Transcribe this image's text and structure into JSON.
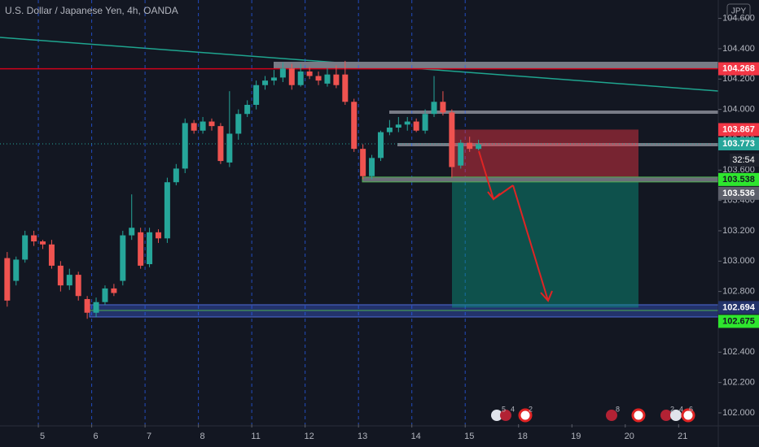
{
  "chart_data": {
    "type": "candlestick",
    "title": "U.S. Dollar / Japanese Yen, 4h, OANDA",
    "currency": "JPY",
    "countdown": "32:54",
    "x": [
      -4,
      -3,
      -2,
      -1,
      0,
      1,
      2,
      3,
      4,
      5,
      6,
      7,
      8,
      9,
      10,
      11,
      12,
      13,
      14,
      15,
      16,
      17,
      18,
      19,
      20,
      21,
      22,
      23,
      24,
      25,
      26,
      27,
      28,
      29,
      30,
      31,
      32,
      33,
      34,
      35,
      36,
      37,
      38,
      39,
      40,
      41,
      42,
      43,
      44,
      45,
      46,
      47,
      48,
      49
    ],
    "open": [
      103.02,
      102.87,
      103.01,
      103.17,
      103.13,
      103.11,
      102.97,
      102.84,
      102.91,
      102.75,
      102.66,
      102.73,
      102.82,
      102.87,
      103.17,
      103.19,
      102.98,
      103.19,
      103.15,
      103.52,
      103.61,
      103.91,
      103.86,
      103.92,
      103.89,
      103.65,
      103.84,
      103.97,
      104.03,
      104.16,
      104.19,
      104.21,
      104.27,
      104.16,
      104.25,
      104.22,
      104.17,
      104.23,
      104.23,
      104.05,
      103.74,
      103.56,
      103.68,
      103.85,
      103.88,
      103.9,
      103.92,
      103.86,
      103.97,
      104.05,
      103.98,
      103.63,
      103.78,
      103.74
    ],
    "high": [
      103.06,
      103.03,
      103.2,
      103.2,
      103.14,
      103.14,
      103.0,
      102.95,
      102.93,
      102.77,
      102.76,
      102.84,
      102.85,
      103.2,
      103.44,
      103.22,
      103.22,
      103.21,
      103.55,
      103.64,
      103.94,
      103.93,
      103.95,
      103.94,
      103.91,
      104.12,
      104.0,
      104.06,
      104.19,
      104.22,
      104.26,
      104.31,
      104.3,
      104.3,
      104.28,
      104.25,
      104.27,
      104.29,
      104.32,
      104.07,
      103.77,
      103.7,
      103.86,
      103.93,
      103.95,
      103.95,
      103.94,
      104.0,
      104.22,
      104.12,
      104.0,
      103.8,
      103.82,
      103.8
    ],
    "low": [
      102.7,
      102.84,
      102.99,
      103.1,
      103.08,
      102.95,
      102.8,
      102.81,
      102.74,
      102.62,
      102.63,
      102.71,
      102.77,
      102.84,
      103.14,
      102.95,
      102.96,
      103.12,
      103.12,
      103.5,
      103.58,
      103.84,
      103.84,
      103.86,
      103.64,
      103.62,
      103.8,
      103.95,
      104.0,
      104.13,
      104.16,
      104.18,
      104.13,
      104.15,
      104.2,
      104.16,
      104.15,
      104.14,
      104.03,
      103.72,
      103.54,
      103.54,
      103.66,
      103.83,
      103.85,
      103.86,
      103.85,
      103.84,
      103.95,
      103.96,
      103.55,
      103.61,
      103.72,
      103.73
    ],
    "close": [
      102.74,
      103.01,
      103.17,
      103.13,
      103.11,
      102.97,
      102.84,
      102.91,
      102.77,
      102.66,
      102.73,
      102.82,
      102.79,
      103.17,
      103.22,
      102.97,
      103.19,
      103.15,
      103.52,
      103.61,
      103.91,
      103.86,
      103.92,
      103.89,
      103.66,
      103.84,
      103.97,
      104.03,
      104.16,
      104.19,
      104.21,
      104.27,
      104.16,
      104.25,
      104.22,
      104.19,
      104.23,
      104.16,
      104.05,
      103.74,
      103.56,
      103.68,
      103.85,
      103.88,
      103.9,
      103.92,
      103.86,
      103.97,
      104.05,
      103.98,
      103.62,
      103.78,
      103.74,
      103.77
    ],
    "up_color": "#26a69a",
    "down_color": "#ef5350",
    "xlim": [
      -4.81,
      75.96
    ],
    "xticks": [
      {
        "value": -0.5,
        "label": "5"
      },
      {
        "value": 5.5,
        "label": "6"
      },
      {
        "value": 11.5,
        "label": "7"
      },
      {
        "value": 17.5,
        "label": "8"
      },
      {
        "value": 23.5,
        "label": "11"
      },
      {
        "value": 29.5,
        "label": "12"
      },
      {
        "value": 35.5,
        "label": "13"
      },
      {
        "value": 41.5,
        "label": "14"
      },
      {
        "value": 47.5,
        "label": "15"
      },
      {
        "value": 53.5,
        "label": "18"
      },
      {
        "value": 59.5,
        "label": "19"
      },
      {
        "value": 65.5,
        "label": "20"
      },
      {
        "value": 71.5,
        "label": "21"
      }
    ],
    "ylim": [
      101.925,
      104.721
    ],
    "yticks": [
      {
        "value": 102.0,
        "label": "102.000"
      },
      {
        "value": 102.2,
        "label": "102.200"
      },
      {
        "value": 102.4,
        "label": "102.400"
      },
      {
        "value": 102.6,
        "label": "102.600"
      },
      {
        "value": 102.8,
        "label": "102.800"
      },
      {
        "value": 103.0,
        "label": "103.000"
      },
      {
        "value": 103.2,
        "label": "103.200"
      },
      {
        "value": 103.4,
        "label": "103.400"
      },
      {
        "value": 103.6,
        "label": "103.600"
      },
      {
        "value": 103.8,
        "label": "103.800"
      },
      {
        "value": 104.0,
        "label": "104.000"
      },
      {
        "value": 104.2,
        "label": "104.200"
      },
      {
        "value": 104.4,
        "label": "104.400"
      },
      {
        "value": 104.6,
        "label": "104.600"
      }
    ],
    "price_labels": [
      {
        "value": 104.268,
        "color": "#f23645"
      },
      {
        "value": 103.867,
        "color": "#f23645"
      },
      {
        "value": 103.773,
        "color": "#26a69a"
      },
      {
        "value": 103.538,
        "color": "#2ee62e"
      },
      {
        "value": 103.536,
        "color": "#5d606b"
      },
      {
        "value": 102.694,
        "color": "#23336b"
      },
      {
        "value": 102.675,
        "color": "#2ee62e"
      }
    ],
    "event_badges": [
      "5",
      "4",
      "2",
      "8",
      "2",
      "4",
      "6"
    ]
  }
}
